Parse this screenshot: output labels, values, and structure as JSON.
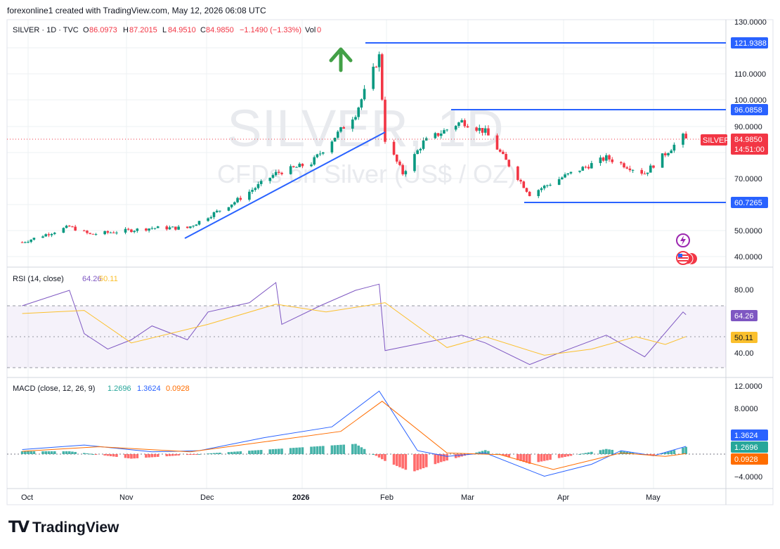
{
  "header": {
    "credit": "forexonline1 created with TradingView.com, May 12, 2026 06:08 UTC"
  },
  "legend": {
    "symbol": "SILVER · 1D · TVC",
    "open_label": "O",
    "open": "86.0973",
    "high_label": "H",
    "high": "87.2015",
    "low_label": "L",
    "low": "84.9510",
    "close_label": "C",
    "close": "84.9850",
    "change": "−1.1490 (−1.33%)",
    "vol_label": "Vol",
    "vol": "0"
  },
  "watermark": {
    "symbol": "SILVER, 1D",
    "description": "CFDs on Silver (US$ / OZ)"
  },
  "price_axis": {
    "ticks": [
      "130.0000",
      "110.0000",
      "100.0000",
      "90.0000",
      "70.0000",
      "50.0000",
      "40.0000"
    ],
    "line_labels": [
      "121.9388",
      "96.0858",
      "60.7265"
    ],
    "current_name": "SILVER",
    "current_price": "84.9850",
    "countdown": "14:51:00"
  },
  "rsi": {
    "title": "RSI (14, close)",
    "value": "64.26",
    "ma_value": "50.11",
    "ticks": [
      "80.00",
      "40.00"
    ],
    "label_value": "64.26",
    "label_ma": "50.11"
  },
  "macd": {
    "title": "MACD (close, 12, 26, 9)",
    "hist": "1.2696",
    "macd": "1.3624",
    "signal": "0.0928",
    "ticks": [
      "12.0000",
      "8.0000",
      "−4.0000"
    ],
    "label_macd": "1.3624",
    "label_hist": "1.2696",
    "label_signal": "0.0928"
  },
  "time_axis": [
    "Oct",
    "Nov",
    "Dec",
    "2026",
    "Feb",
    "Mar",
    "Apr",
    "May"
  ],
  "brand": {
    "name": "TradingView"
  },
  "colors": {
    "up": "#089981",
    "down": "#f23645",
    "line_blue": "#2962ff",
    "rsi_line": "#7e57c2",
    "rsi_ma": "#fbc02d",
    "macd_line": "#2962ff",
    "signal_line": "#ff6d00",
    "arrow": "#43a047"
  },
  "chart_data": [
    {
      "type": "candlestick",
      "title": "SILVER · 1D · TVC",
      "ylim": [
        40,
        130
      ],
      "x": [
        "Oct",
        "Nov",
        "Dec",
        "2026",
        "Feb",
        "Mar",
        "Apr",
        "May"
      ],
      "close_path": [
        [
          "2025-09-29",
          45.5
        ],
        [
          "2025-10-15",
          51.5
        ],
        [
          "2025-10-22",
          48.5
        ],
        [
          "2025-11-12",
          51.0
        ],
        [
          "2025-11-24",
          51.0
        ],
        [
          "2025-12-10",
          61.0
        ],
        [
          "2025-12-24",
          72.0
        ],
        [
          "2026-01-05",
          76.0
        ],
        [
          "2026-01-20",
          95.0
        ],
        [
          "2026-01-28",
          117.0
        ],
        [
          "2026-01-30",
          85.0
        ],
        [
          "2026-02-05",
          72.0
        ],
        [
          "2026-02-12",
          84.0
        ],
        [
          "2026-02-25",
          92.0
        ],
        [
          "2026-03-05",
          88.0
        ],
        [
          "2026-03-20",
          64.0
        ],
        [
          "2026-04-01",
          71.0
        ],
        [
          "2026-04-15",
          78.0
        ],
        [
          "2026-04-28",
          72.0
        ],
        [
          "2026-05-11",
          86.1
        ],
        [
          "2026-05-12",
          84.985
        ]
      ],
      "horizontal_levels": [
        121.9388,
        96.0858,
        60.7265
      ],
      "trendline": [
        [
          "2025-11-28",
          47.0
        ],
        [
          "2026-01-30",
          87.0
        ]
      ]
    },
    {
      "type": "line",
      "title": "RSI (14, close)",
      "ylim": [
        30,
        90
      ],
      "bands": [
        30,
        70
      ],
      "series": [
        {
          "name": "RSI",
          "values": [
            [
              "2025-09-29",
              70
            ],
            [
              "2025-10-15",
              80
            ],
            [
              "2025-10-20",
              52
            ],
            [
              "2025-10-28",
              42
            ],
            [
              "2025-11-05",
              48
            ],
            [
              "2025-11-12",
              57
            ],
            [
              "2025-11-24",
              48
            ],
            [
              "2025-12-01",
              66
            ],
            [
              "2025-12-15",
              72
            ],
            [
              "2025-12-24",
              85
            ],
            [
              "2025-12-26",
              58
            ],
            [
              "2026-01-08",
              70
            ],
            [
              "2026-01-20",
              80
            ],
            [
              "2026-01-28",
              84
            ],
            [
              "2026-01-30",
              41
            ],
            [
              "2026-02-12",
              46
            ],
            [
              "2026-02-25",
              51
            ],
            [
              "2026-03-05",
              46
            ],
            [
              "2026-03-20",
              32
            ],
            [
              "2026-04-01",
              41
            ],
            [
              "2026-04-15",
              51
            ],
            [
              "2026-04-28",
              37
            ],
            [
              "2026-05-11",
              66
            ],
            [
              "2026-05-12",
              64.26
            ]
          ]
        },
        {
          "name": "RSI-based MA",
          "values": [
            [
              "2025-09-29",
              65
            ],
            [
              "2025-10-20",
              67
            ],
            [
              "2025-11-05",
              46
            ],
            [
              "2025-12-01",
              58
            ],
            [
              "2025-12-24",
              71
            ],
            [
              "2026-01-10",
              66
            ],
            [
              "2026-01-30",
              72
            ],
            [
              "2026-02-20",
              43
            ],
            [
              "2026-03-05",
              50
            ],
            [
              "2026-03-25",
              38
            ],
            [
              "2026-04-10",
              42
            ],
            [
              "2026-04-25",
              50
            ],
            [
              "2026-05-05",
              45
            ],
            [
              "2026-05-12",
              50.11
            ]
          ]
        }
      ]
    },
    {
      "type": "line",
      "title": "MACD (close, 12, 26, 9)",
      "ylim": [
        -4.5,
        13
      ],
      "series": [
        {
          "name": "MACD",
          "values": [
            [
              "2025-09-29",
              0.8
            ],
            [
              "2025-10-20",
              1.6
            ],
            [
              "2025-11-12",
              0.4
            ],
            [
              "2025-11-28",
              0.6
            ],
            [
              "2025-12-20",
              2.9
            ],
            [
              "2026-01-12",
              4.8
            ],
            [
              "2026-01-28",
              11.1
            ],
            [
              "2026-02-10",
              0.6
            ],
            [
              "2026-02-20",
              -0.4
            ],
            [
              "2026-03-05",
              0.2
            ],
            [
              "2026-03-25",
              -3.9
            ],
            [
              "2026-04-10",
              -1.8
            ],
            [
              "2026-04-20",
              0.6
            ],
            [
              "2026-05-01",
              -0.3
            ],
            [
              "2026-05-12",
              1.3624
            ]
          ]
        },
        {
          "name": "Signal",
          "values": [
            [
              "2025-09-29",
              0.5
            ],
            [
              "2025-10-25",
              1.3
            ],
            [
              "2025-11-25",
              0.4
            ],
            [
              "2025-12-25",
              2.5
            ],
            [
              "2026-01-15",
              4.0
            ],
            [
              "2026-01-29",
              9.3
            ],
            [
              "2026-02-20",
              0.2
            ],
            [
              "2026-03-10",
              -0.1
            ],
            [
              "2026-03-28",
              -2.7
            ],
            [
              "2026-04-20",
              0.2
            ],
            [
              "2026-05-05",
              -0.4
            ],
            [
              "2026-05-12",
              0.0928
            ]
          ]
        },
        {
          "name": "Histogram",
          "values": [
            [
              "2025-10-15",
              0.5
            ],
            [
              "2025-11-05",
              -0.8
            ],
            [
              "2025-12-15",
              0.6
            ],
            [
              "2026-01-20",
              1.8
            ],
            [
              "2026-01-30",
              -1.2
            ],
            [
              "2026-02-08",
              -3.2
            ],
            [
              "2026-02-18",
              -1.4
            ],
            [
              "2026-03-05",
              0.7
            ],
            [
              "2026-03-20",
              -1.7
            ],
            [
              "2026-04-15",
              0.9
            ],
            [
              "2026-05-01",
              -0.3
            ],
            [
              "2026-05-12",
              1.2696
            ]
          ]
        }
      ]
    }
  ]
}
